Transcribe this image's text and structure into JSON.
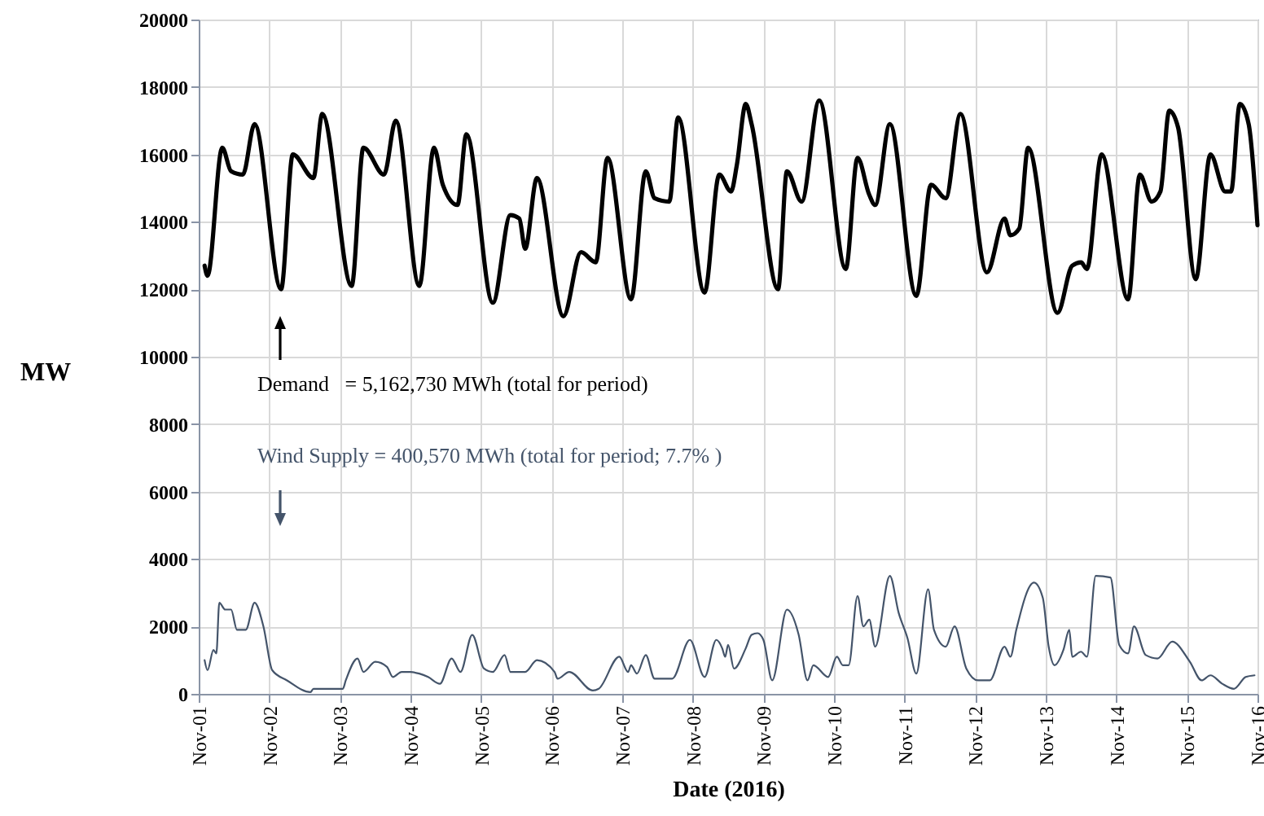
{
  "chart_data": {
    "type": "line",
    "xlabel": "Date (2016)",
    "ylabel": "MW",
    "xlim": [
      "2016-11-01",
      "2016-11-16"
    ],
    "xticks": [
      {
        "value": "2016-11-01",
        "label": "Nov-01"
      },
      {
        "value": "2016-11-02",
        "label": "Nov-02"
      },
      {
        "value": "2016-11-03",
        "label": "Nov-03"
      },
      {
        "value": "2016-11-04",
        "label": "Nov-04"
      },
      {
        "value": "2016-11-05",
        "label": "Nov-05"
      },
      {
        "value": "2016-11-06",
        "label": "Nov-06"
      },
      {
        "value": "2016-11-07",
        "label": "Nov-07"
      },
      {
        "value": "2016-11-08",
        "label": "Nov-08"
      },
      {
        "value": "2016-11-09",
        "label": "Nov-09"
      },
      {
        "value": "2016-11-10",
        "label": "Nov-10"
      },
      {
        "value": "2016-11-11",
        "label": "Nov-11"
      },
      {
        "value": "2016-11-12",
        "label": "Nov-12"
      },
      {
        "value": "2016-11-13",
        "label": "Nov-13"
      },
      {
        "value": "2016-11-14",
        "label": "Nov-14"
      },
      {
        "value": "2016-11-15",
        "label": "Nov-15"
      },
      {
        "value": "2016-11-16",
        "label": "Nov-16"
      }
    ],
    "ylim": [
      0,
      20000
    ],
    "yticks": [
      0,
      2000,
      4000,
      6000,
      8000,
      10000,
      12000,
      14000,
      16000,
      18000,
      20000
    ],
    "grid": true,
    "marker": "none",
    "line_style": "solid",
    "series": [
      {
        "color": "#000000",
        "x": [
          "2016-11-01T02:00",
          "2016-11-01T03:00",
          "2016-11-01T08:00",
          "2016-11-01T11:00",
          "2016-11-01T15:00",
          "2016-11-01T19:00",
          "2016-11-02T04:00",
          "2016-11-02T08:00",
          "2016-11-02T15:00",
          "2016-11-02T18:00",
          "2016-11-03T04:00",
          "2016-11-03T08:00",
          "2016-11-03T15:00",
          "2016-11-03T19:00",
          "2016-11-04T03:00",
          "2016-11-04T08:00",
          "2016-11-04T11:00",
          "2016-11-04T16:00",
          "2016-11-04T19:00",
          "2016-11-05T04:00",
          "2016-11-05T10:00",
          "2016-11-05T13:00",
          "2016-11-05T15:00",
          "2016-11-05T19:00",
          "2016-11-06T04:00",
          "2016-11-06T10:00",
          "2016-11-06T15:00",
          "2016-11-06T19:00",
          "2016-11-07T03:00",
          "2016-11-07T08:00",
          "2016-11-07T11:00",
          "2016-11-07T16:00",
          "2016-11-07T19:00",
          "2016-11-08T04:00",
          "2016-11-08T09:00",
          "2016-11-08T13:00",
          "2016-11-08T15:00",
          "2016-11-08T18:00",
          "2016-11-08T20:00",
          "2016-11-09T05:00",
          "2016-11-09T08:00",
          "2016-11-09T13:00",
          "2016-11-09T19:00",
          "2016-11-10T04:00",
          "2016-11-10T08:00",
          "2016-11-10T12:00",
          "2016-11-10T14:00",
          "2016-11-10T19:00",
          "2016-11-11T04:00",
          "2016-11-11T09:00",
          "2016-11-11T14:00",
          "2016-11-11T19:00",
          "2016-11-12T04:00",
          "2016-11-12T10:00",
          "2016-11-12T12:00",
          "2016-11-12T15:00",
          "2016-11-12T18:00",
          "2016-11-13T04:00",
          "2016-11-13T09:00",
          "2016-11-13T12:00",
          "2016-11-13T14:00",
          "2016-11-13T19:00",
          "2016-11-14T04:00",
          "2016-11-14T08:00",
          "2016-11-14T12:00",
          "2016-11-14T15:00",
          "2016-11-14T18:00",
          "2016-11-14T21:00",
          "2016-11-15T03:00",
          "2016-11-15T08:00",
          "2016-11-15T13:00",
          "2016-11-15T15:00",
          "2016-11-15T18:00",
          "2016-11-15T21:00",
          "2016-11-16T00:00"
        ],
        "values": [
          12700,
          12400,
          16200,
          15500,
          15400,
          16900,
          12000,
          16000,
          15300,
          17200,
          12100,
          16200,
          15400,
          17000,
          12100,
          16200,
          15100,
          14500,
          16600,
          11600,
          14200,
          14100,
          13200,
          15300,
          11200,
          13100,
          12800,
          15900,
          11700,
          15500,
          14700,
          14600,
          17100,
          11900,
          15400,
          14900,
          15700,
          17500,
          16900,
          12000,
          15500,
          14600,
          17600,
          12600,
          15900,
          14800,
          14500,
          16900,
          11800,
          15100,
          14700,
          17200,
          12500,
          14100,
          13600,
          13800,
          16200,
          11300,
          12700,
          12800,
          12600,
          16000,
          11700,
          15400,
          14600,
          14900,
          17300,
          16800,
          12300,
          16000,
          14900,
          14900,
          17500,
          16900,
          13900
        ]
      },
      {
        "color": "#44546a",
        "x": [
          "2016-11-01T02:00",
          "2016-11-01T03:00",
          "2016-11-01T05:00",
          "2016-11-01T06:00",
          "2016-11-01T07:00",
          "2016-11-01T09:00",
          "2016-11-01T11:00",
          "2016-11-01T13:00",
          "2016-11-01T16:00",
          "2016-11-01T19:00",
          "2016-11-01T22:00",
          "2016-11-02T01:00",
          "2016-11-02T06:00",
          "2016-11-02T14:00",
          "2016-11-02T15:00",
          "2016-11-03T01:00",
          "2016-11-03T02:00",
          "2016-11-03T06:00",
          "2016-11-03T08:00",
          "2016-11-03T12:00",
          "2016-11-03T16:00",
          "2016-11-03T18:00",
          "2016-11-03T21:00",
          "2016-11-04T00:00",
          "2016-11-04T03:00",
          "2016-11-04T06:00",
          "2016-11-04T10:00",
          "2016-11-04T14:00",
          "2016-11-04T17:00",
          "2016-11-04T21:00",
          "2016-11-05T01:00",
          "2016-11-05T04:00",
          "2016-11-05T08:00",
          "2016-11-05T10:00",
          "2016-11-05T15:00",
          "2016-11-05T19:00",
          "2016-11-06T01:00",
          "2016-11-06T02:00",
          "2016-11-06T06:00",
          "2016-11-06T14:00",
          "2016-11-06T16:00",
          "2016-11-06T23:00",
          "2016-11-07T02:00",
          "2016-11-07T03:00",
          "2016-11-07T05:00",
          "2016-11-07T08:00",
          "2016-11-07T11:00",
          "2016-11-07T17:00",
          "2016-11-07T23:00",
          "2016-11-08T04:00",
          "2016-11-08T08:00",
          "2016-11-08T10:00",
          "2016-11-08T11:00",
          "2016-11-08T12:00",
          "2016-11-08T14:00",
          "2016-11-08T18:00",
          "2016-11-08T20:00",
          "2016-11-08T22:00",
          "2016-11-09T00:00",
          "2016-11-09T03:00",
          "2016-11-09T08:00",
          "2016-11-09T12:00",
          "2016-11-09T15:00",
          "2016-11-09T17:00",
          "2016-11-09T22:00",
          "2016-11-10T01:00",
          "2016-11-10T03:00",
          "2016-11-10T05:00",
          "2016-11-10T08:00",
          "2016-11-10T10:00",
          "2016-11-10T12:00",
          "2016-11-10T14:00",
          "2016-11-10T19:00",
          "2016-11-10T22:00",
          "2016-11-11T01:00",
          "2016-11-11T04:00",
          "2016-11-11T08:00",
          "2016-11-11T10:00",
          "2016-11-11T14:00",
          "2016-11-11T17:00",
          "2016-11-11T21:00",
          "2016-11-12T01:00",
          "2016-11-12T05:00",
          "2016-11-12T10:00",
          "2016-11-12T12:00",
          "2016-11-12T14:00",
          "2016-11-12T20:00",
          "2016-11-12T23:00",
          "2016-11-13T01:00",
          "2016-11-13T03:00",
          "2016-11-13T06:00",
          "2016-11-13T08:00",
          "2016-11-13T09:00",
          "2016-11-13T12:00",
          "2016-11-13T14:00",
          "2016-11-13T17:00",
          "2016-11-13T22:00",
          "2016-11-14T01:00",
          "2016-11-14T04:00",
          "2016-11-14T06:00",
          "2016-11-14T10:00",
          "2016-11-14T14:00",
          "2016-11-14T19:00",
          "2016-11-15T01:00",
          "2016-11-15T05:00",
          "2016-11-15T08:00",
          "2016-11-15T12:00",
          "2016-11-15T16:00",
          "2016-11-15T20:00",
          "2016-11-15T23:00"
        ],
        "values": [
          1000,
          700,
          1300,
          1200,
          2700,
          2500,
          2500,
          1900,
          1900,
          2700,
          2000,
          700,
          400,
          50,
          150,
          150,
          400,
          1050,
          650,
          950,
          800,
          500,
          650,
          650,
          600,
          500,
          300,
          1050,
          650,
          1750,
          750,
          650,
          1150,
          650,
          650,
          1000,
          650,
          450,
          650,
          100,
          150,
          1100,
          650,
          850,
          600,
          1150,
          450,
          450,
          1600,
          500,
          1600,
          1350,
          1100,
          1450,
          750,
          1350,
          1750,
          1800,
          1600,
          400,
          2500,
          1750,
          400,
          850,
          500,
          1100,
          850,
          850,
          2900,
          2000,
          2200,
          1400,
          3500,
          2400,
          1650,
          600,
          3100,
          1900,
          1400,
          2000,
          750,
          400,
          400,
          1400,
          1100,
          1900,
          3300,
          2850,
          1400,
          850,
          1300,
          1900,
          1100,
          1250,
          1100,
          3500,
          3450,
          1450,
          1200,
          2000,
          1150,
          1050,
          1550,
          950,
          400,
          550,
          300,
          150,
          500,
          550
        ]
      }
    ],
    "annotations": [
      "Demand   = 5,162,730 MWh (total for period)",
      "Wind Supply = 400,570 MWh (total for period; 7.7% )"
    ]
  }
}
